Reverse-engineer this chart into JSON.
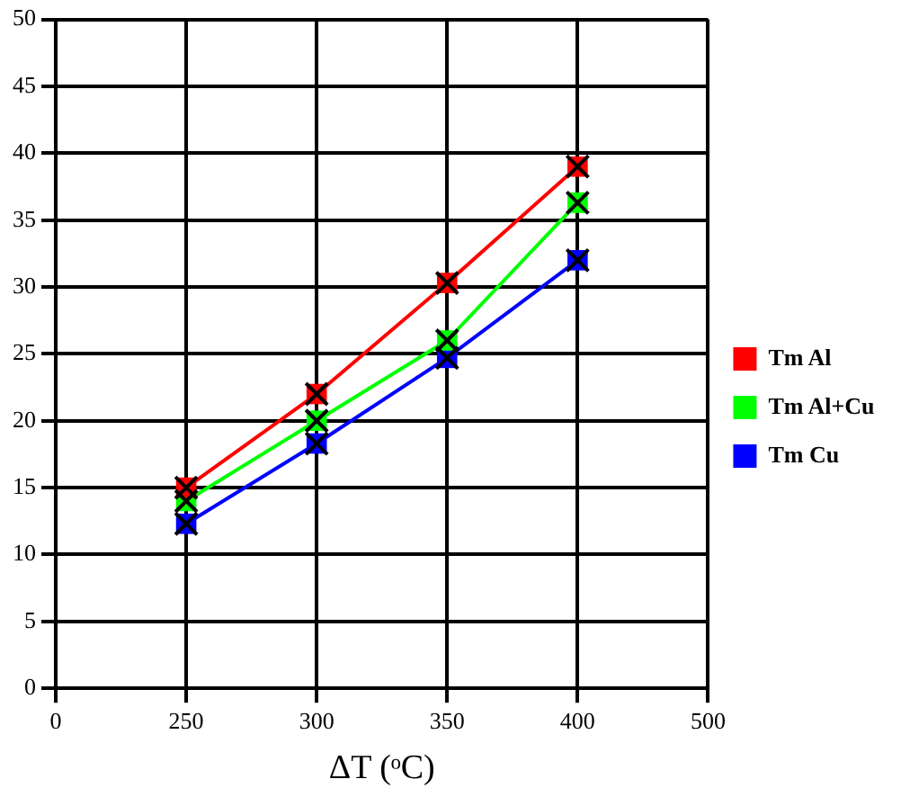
{
  "chart_data": {
    "type": "line",
    "xlabel": "ΔT (ᵒC)",
    "categories": [
      "0",
      "250",
      "300",
      "350",
      "400",
      "500"
    ],
    "series": [
      {
        "name": "Tm Al",
        "color": "#ff0000",
        "values": [
          null,
          15,
          22,
          30.3,
          39,
          null
        ]
      },
      {
        "name": "Tm Al+Cu",
        "color": "#00ff00",
        "values": [
          null,
          14,
          20,
          26,
          36.3,
          null
        ]
      },
      {
        "name": "Tm Cu",
        "color": "#0000ff",
        "values": [
          null,
          12.3,
          18.3,
          24.7,
          32,
          null
        ]
      }
    ],
    "ylim": [
      0,
      50
    ],
    "yticks": [
      0,
      5,
      10,
      15,
      20,
      25,
      30,
      35,
      40,
      45,
      50
    ],
    "grid": true,
    "legend": "right",
    "marker": "square",
    "line_style": "solid"
  }
}
